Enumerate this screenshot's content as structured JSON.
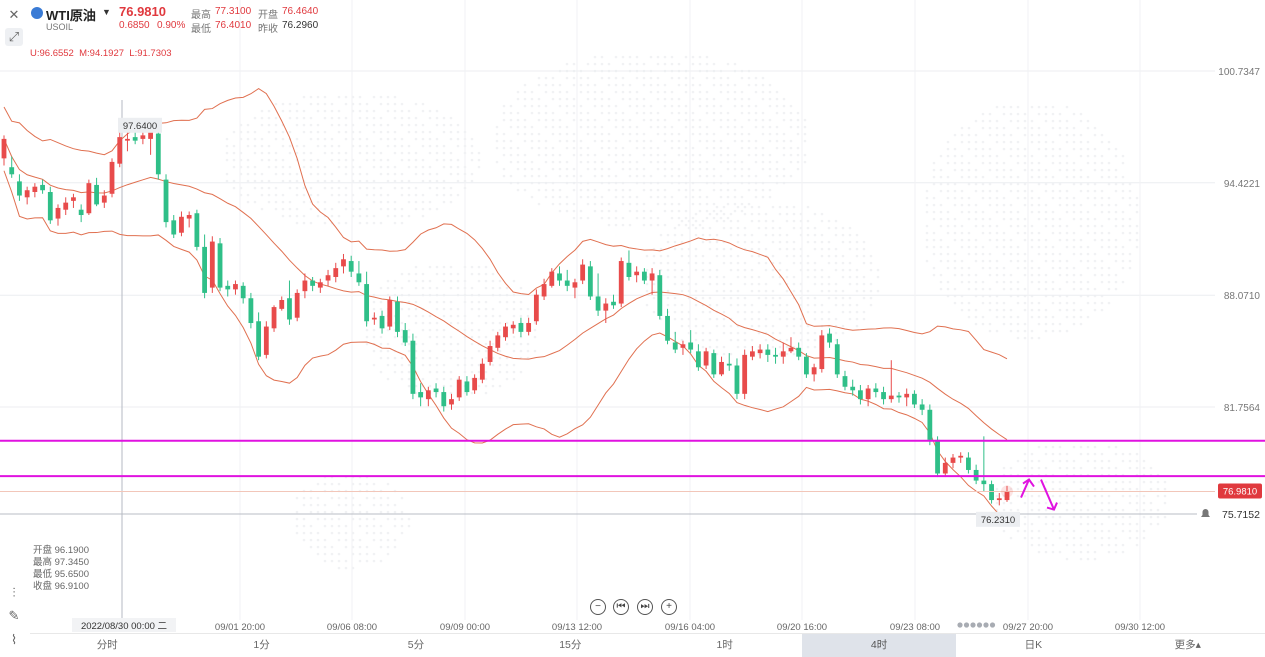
{
  "header": {
    "symbol_name": "WTI原油",
    "symbol_code": "USOIL",
    "dropdown_icon": "caret-down-icon",
    "last_price": "76.9810",
    "change": "0.6850",
    "change_pct": "0.90%",
    "high_label": "最高",
    "high_value": "77.3100",
    "open_label": "开盘",
    "open_value": "76.4640",
    "low_label": "最低",
    "low_value": "76.4010",
    "prev_close_label": "昨收",
    "prev_close_value": "76.2960",
    "bollinger_text": "U:96.6552  M:94.1927  L:91.7303"
  },
  "ohlc_panel": {
    "open": "开盘 96.1900",
    "high": "最高 97.3450",
    "low": "最低 95.6500",
    "close": "收盘 96.9100"
  },
  "markers": {
    "crosshair_price": "97.6400",
    "min_price": "76.2310",
    "current_price": "76.9810",
    "alert_price": "75.7152",
    "crosshair_date": "2022/08/30 00:00 二"
  },
  "timeframes": [
    "分时",
    "1分",
    "5分",
    "15分",
    "1时",
    "4时",
    "日K",
    "更多▴"
  ],
  "active_timeframe": "4时",
  "colors": {
    "up": "#e84b4b",
    "down": "#2fbf88",
    "bollinger": "#e07050",
    "horizontal_lines": "#e012e0",
    "accent": "#e0393e"
  },
  "chart_data": {
    "type": "candlestick",
    "title": "WTI原油 USOIL",
    "timeframe": "4时",
    "y_ticks": [
      100.7347,
      94.4221,
      88.071,
      81.7564
    ],
    "ylim": [
      74.0,
      103.0
    ],
    "x_tick_labels": [
      "09/01 20:00",
      "09/06 08:00",
      "09/09 00:00",
      "09/13 12:00",
      "09/16 04:00",
      "09/20 16:00",
      "09/23 08:00",
      "09/27 20:00",
      "09/30 12:00"
    ],
    "indicators": [
      "Bollinger Bands (U, M, L)"
    ],
    "horizontal_lines": [
      79.85,
      77.85
    ],
    "annotations": [
      "up-arrow",
      "down-arrow"
    ],
    "candles": [
      {
        "o": 95.8,
        "h": 97.1,
        "l": 95.4,
        "c": 96.9
      },
      {
        "o": 95.3,
        "h": 95.9,
        "l": 94.7,
        "c": 94.9
      },
      {
        "o": 94.5,
        "h": 94.9,
        "l": 93.4,
        "c": 93.7
      },
      {
        "o": 93.6,
        "h": 94.2,
        "l": 93.2,
        "c": 94.0
      },
      {
        "o": 93.9,
        "h": 94.4,
        "l": 93.6,
        "c": 94.2
      },
      {
        "o": 94.3,
        "h": 94.6,
        "l": 93.8,
        "c": 94.0
      },
      {
        "o": 93.9,
        "h": 94.2,
        "l": 92.1,
        "c": 92.3
      },
      {
        "o": 92.4,
        "h": 93.2,
        "l": 92.0,
        "c": 93.0
      },
      {
        "o": 92.9,
        "h": 93.6,
        "l": 92.6,
        "c": 93.3
      },
      {
        "o": 93.4,
        "h": 93.8,
        "l": 93.0,
        "c": 93.6
      },
      {
        "o": 92.9,
        "h": 93.2,
        "l": 92.2,
        "c": 92.6
      },
      {
        "o": 92.7,
        "h": 94.6,
        "l": 92.6,
        "c": 94.4
      },
      {
        "o": 94.3,
        "h": 94.7,
        "l": 93.1,
        "c": 93.2
      },
      {
        "o": 93.3,
        "h": 94.0,
        "l": 93.0,
        "c": 93.7
      },
      {
        "o": 93.8,
        "h": 95.8,
        "l": 93.6,
        "c": 95.6
      },
      {
        "o": 95.5,
        "h": 97.3,
        "l": 95.3,
        "c": 97.0
      },
      {
        "o": 96.8,
        "h": 97.4,
        "l": 96.2,
        "c": 96.9
      },
      {
        "o": 97.0,
        "h": 97.6,
        "l": 96.6,
        "c": 96.8
      },
      {
        "o": 96.9,
        "h": 97.5,
        "l": 96.6,
        "c": 97.1
      },
      {
        "o": 96.9,
        "h": 97.6,
        "l": 96.0,
        "c": 97.3
      },
      {
        "o": 97.2,
        "h": 97.4,
        "l": 94.6,
        "c": 94.9
      },
      {
        "o": 94.6,
        "h": 94.9,
        "l": 91.9,
        "c": 92.2
      },
      {
        "o": 92.3,
        "h": 92.6,
        "l": 91.3,
        "c": 91.5
      },
      {
        "o": 91.6,
        "h": 92.8,
        "l": 91.4,
        "c": 92.5
      },
      {
        "o": 92.4,
        "h": 92.8,
        "l": 91.9,
        "c": 92.6
      },
      {
        "o": 92.7,
        "h": 92.9,
        "l": 90.6,
        "c": 90.8
      },
      {
        "o": 90.8,
        "h": 91.5,
        "l": 87.9,
        "c": 88.2
      },
      {
        "o": 88.5,
        "h": 91.4,
        "l": 88.2,
        "c": 91.1
      },
      {
        "o": 91.0,
        "h": 91.3,
        "l": 88.3,
        "c": 88.5
      },
      {
        "o": 88.6,
        "h": 88.9,
        "l": 88.0,
        "c": 88.4
      },
      {
        "o": 88.4,
        "h": 88.9,
        "l": 88.1,
        "c": 88.7
      },
      {
        "o": 88.6,
        "h": 88.8,
        "l": 87.6,
        "c": 87.9
      },
      {
        "o": 87.9,
        "h": 88.2,
        "l": 86.2,
        "c": 86.5
      },
      {
        "o": 86.6,
        "h": 87.1,
        "l": 84.4,
        "c": 84.6
      },
      {
        "o": 84.7,
        "h": 86.6,
        "l": 84.5,
        "c": 86.3
      },
      {
        "o": 86.2,
        "h": 87.5,
        "l": 86.0,
        "c": 87.4
      },
      {
        "o": 87.3,
        "h": 88.0,
        "l": 87.2,
        "c": 87.8
      },
      {
        "o": 87.9,
        "h": 88.9,
        "l": 86.4,
        "c": 86.7
      },
      {
        "o": 86.8,
        "h": 88.4,
        "l": 86.6,
        "c": 88.2
      },
      {
        "o": 88.3,
        "h": 89.3,
        "l": 87.9,
        "c": 88.9
      },
      {
        "o": 88.9,
        "h": 89.1,
        "l": 88.3,
        "c": 88.6
      },
      {
        "o": 88.5,
        "h": 89.0,
        "l": 88.2,
        "c": 88.8
      },
      {
        "o": 88.9,
        "h": 89.5,
        "l": 88.6,
        "c": 89.2
      },
      {
        "o": 89.1,
        "h": 89.9,
        "l": 88.8,
        "c": 89.6
      },
      {
        "o": 89.7,
        "h": 90.4,
        "l": 89.3,
        "c": 90.1
      },
      {
        "o": 90.0,
        "h": 90.3,
        "l": 89.1,
        "c": 89.4
      },
      {
        "o": 89.3,
        "h": 90.0,
        "l": 88.6,
        "c": 88.8
      },
      {
        "o": 88.7,
        "h": 89.4,
        "l": 86.3,
        "c": 86.6
      },
      {
        "o": 86.7,
        "h": 87.1,
        "l": 86.4,
        "c": 86.8
      },
      {
        "o": 86.9,
        "h": 87.2,
        "l": 85.9,
        "c": 86.2
      },
      {
        "o": 86.3,
        "h": 88.0,
        "l": 86.1,
        "c": 87.8
      },
      {
        "o": 87.7,
        "h": 88.0,
        "l": 85.7,
        "c": 86.0
      },
      {
        "o": 86.1,
        "h": 86.5,
        "l": 85.2,
        "c": 85.4
      },
      {
        "o": 85.5,
        "h": 85.9,
        "l": 82.2,
        "c": 82.5
      },
      {
        "o": 82.6,
        "h": 83.1,
        "l": 81.8,
        "c": 82.3
      },
      {
        "o": 82.2,
        "h": 82.9,
        "l": 81.8,
        "c": 82.7
      },
      {
        "o": 82.8,
        "h": 83.1,
        "l": 82.3,
        "c": 82.6
      },
      {
        "o": 82.6,
        "h": 82.9,
        "l": 81.5,
        "c": 81.8
      },
      {
        "o": 81.9,
        "h": 82.5,
        "l": 81.6,
        "c": 82.2
      },
      {
        "o": 82.3,
        "h": 83.5,
        "l": 82.1,
        "c": 83.3
      },
      {
        "o": 83.2,
        "h": 83.5,
        "l": 82.4,
        "c": 82.6
      },
      {
        "o": 82.7,
        "h": 83.6,
        "l": 82.5,
        "c": 83.4
      },
      {
        "o": 83.3,
        "h": 84.5,
        "l": 83.1,
        "c": 84.2
      },
      {
        "o": 84.3,
        "h": 85.5,
        "l": 84.1,
        "c": 85.2
      },
      {
        "o": 85.1,
        "h": 86.0,
        "l": 84.9,
        "c": 85.8
      },
      {
        "o": 85.7,
        "h": 86.5,
        "l": 85.5,
        "c": 86.3
      },
      {
        "o": 86.2,
        "h": 86.6,
        "l": 85.9,
        "c": 86.4
      },
      {
        "o": 86.5,
        "h": 86.8,
        "l": 85.7,
        "c": 86.0
      },
      {
        "o": 86.0,
        "h": 86.8,
        "l": 85.8,
        "c": 86.5
      },
      {
        "o": 86.6,
        "h": 88.4,
        "l": 86.4,
        "c": 88.1
      },
      {
        "o": 88.0,
        "h": 89.0,
        "l": 87.8,
        "c": 88.7
      },
      {
        "o": 88.6,
        "h": 89.6,
        "l": 88.5,
        "c": 89.4
      },
      {
        "o": 89.3,
        "h": 89.7,
        "l": 88.6,
        "c": 88.9
      },
      {
        "o": 88.9,
        "h": 89.5,
        "l": 88.3,
        "c": 88.6
      },
      {
        "o": 88.5,
        "h": 89.0,
        "l": 87.9,
        "c": 88.8
      },
      {
        "o": 88.9,
        "h": 90.1,
        "l": 88.7,
        "c": 89.8
      },
      {
        "o": 89.7,
        "h": 90.0,
        "l": 87.8,
        "c": 88.0
      },
      {
        "o": 88.0,
        "h": 89.3,
        "l": 86.9,
        "c": 87.2
      },
      {
        "o": 87.2,
        "h": 87.9,
        "l": 86.5,
        "c": 87.6
      },
      {
        "o": 87.7,
        "h": 88.1,
        "l": 87.3,
        "c": 87.5
      },
      {
        "o": 87.6,
        "h": 90.2,
        "l": 87.4,
        "c": 90.0
      },
      {
        "o": 89.9,
        "h": 90.6,
        "l": 88.9,
        "c": 89.1
      },
      {
        "o": 89.2,
        "h": 89.7,
        "l": 88.8,
        "c": 89.4
      },
      {
        "o": 89.4,
        "h": 89.6,
        "l": 88.7,
        "c": 88.9
      },
      {
        "o": 88.9,
        "h": 89.6,
        "l": 88.1,
        "c": 89.3
      },
      {
        "o": 89.2,
        "h": 89.5,
        "l": 86.7,
        "c": 86.9
      },
      {
        "o": 86.9,
        "h": 87.3,
        "l": 85.3,
        "c": 85.5
      },
      {
        "o": 85.4,
        "h": 86.0,
        "l": 84.8,
        "c": 85.0
      },
      {
        "o": 85.1,
        "h": 85.5,
        "l": 84.7,
        "c": 85.3
      },
      {
        "o": 85.4,
        "h": 86.1,
        "l": 84.8,
        "c": 85.0
      },
      {
        "o": 84.9,
        "h": 85.3,
        "l": 83.8,
        "c": 84.0
      },
      {
        "o": 84.1,
        "h": 85.1,
        "l": 83.9,
        "c": 84.9
      },
      {
        "o": 84.8,
        "h": 85.0,
        "l": 83.4,
        "c": 83.6
      },
      {
        "o": 83.6,
        "h": 84.6,
        "l": 83.5,
        "c": 84.3
      },
      {
        "o": 84.2,
        "h": 84.8,
        "l": 83.8,
        "c": 84.1
      },
      {
        "o": 84.1,
        "h": 84.5,
        "l": 82.2,
        "c": 82.5
      },
      {
        "o": 82.5,
        "h": 85.0,
        "l": 82.2,
        "c": 84.7
      },
      {
        "o": 84.6,
        "h": 85.2,
        "l": 84.4,
        "c": 84.9
      },
      {
        "o": 84.8,
        "h": 85.3,
        "l": 84.5,
        "c": 85.0
      },
      {
        "o": 85.0,
        "h": 85.3,
        "l": 84.3,
        "c": 84.7
      },
      {
        "o": 84.7,
        "h": 85.1,
        "l": 84.2,
        "c": 84.6
      },
      {
        "o": 84.6,
        "h": 85.4,
        "l": 84.2,
        "c": 84.9
      },
      {
        "o": 84.9,
        "h": 85.7,
        "l": 84.8,
        "c": 85.1
      },
      {
        "o": 85.1,
        "h": 85.4,
        "l": 84.4,
        "c": 84.6
      },
      {
        "o": 84.6,
        "h": 84.8,
        "l": 83.4,
        "c": 83.6
      },
      {
        "o": 83.6,
        "h": 84.2,
        "l": 83.2,
        "c": 84.0
      },
      {
        "o": 83.9,
        "h": 86.1,
        "l": 83.7,
        "c": 85.8
      },
      {
        "o": 85.9,
        "h": 86.2,
        "l": 85.1,
        "c": 85.4
      },
      {
        "o": 85.3,
        "h": 85.6,
        "l": 83.4,
        "c": 83.6
      },
      {
        "o": 83.5,
        "h": 83.8,
        "l": 82.7,
        "c": 82.9
      },
      {
        "o": 82.9,
        "h": 83.3,
        "l": 82.4,
        "c": 82.7
      },
      {
        "o": 82.7,
        "h": 83.0,
        "l": 81.9,
        "c": 82.2
      },
      {
        "o": 82.2,
        "h": 83.0,
        "l": 81.8,
        "c": 82.8
      },
      {
        "o": 82.8,
        "h": 83.1,
        "l": 82.3,
        "c": 82.6
      },
      {
        "o": 82.6,
        "h": 82.9,
        "l": 81.9,
        "c": 82.2
      },
      {
        "o": 82.2,
        "h": 84.4,
        "l": 82.0,
        "c": 82.4
      },
      {
        "o": 82.4,
        "h": 82.6,
        "l": 82.0,
        "c": 82.3
      },
      {
        "o": 82.3,
        "h": 82.8,
        "l": 81.8,
        "c": 82.5
      },
      {
        "o": 82.5,
        "h": 82.7,
        "l": 81.7,
        "c": 81.9
      },
      {
        "o": 81.9,
        "h": 82.2,
        "l": 81.3,
        "c": 81.6
      },
      {
        "o": 81.6,
        "h": 81.9,
        "l": 79.6,
        "c": 79.9
      },
      {
        "o": 79.9,
        "h": 80.1,
        "l": 77.8,
        "c": 78.0
      },
      {
        "o": 78.0,
        "h": 78.9,
        "l": 77.8,
        "c": 78.6
      },
      {
        "o": 78.6,
        "h": 79.1,
        "l": 78.3,
        "c": 78.9
      },
      {
        "o": 78.9,
        "h": 79.2,
        "l": 78.6,
        "c": 79.0
      },
      {
        "o": 78.9,
        "h": 79.2,
        "l": 78.0,
        "c": 78.2
      },
      {
        "o": 78.2,
        "h": 78.5,
        "l": 77.4,
        "c": 77.6
      },
      {
        "o": 77.6,
        "h": 80.1,
        "l": 77.0,
        "c": 77.4
      },
      {
        "o": 77.4,
        "h": 77.6,
        "l": 76.3,
        "c": 76.5
      },
      {
        "o": 76.5,
        "h": 76.9,
        "l": 76.2,
        "c": 76.6
      },
      {
        "o": 76.5,
        "h": 77.3,
        "l": 76.4,
        "c": 76.98
      }
    ]
  }
}
